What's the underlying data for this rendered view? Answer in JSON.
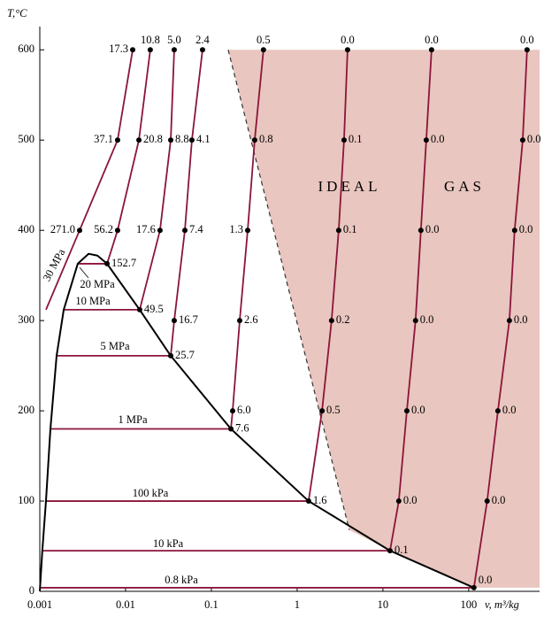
{
  "chart_data": {
    "type": "line",
    "xlog": true,
    "xlabel": "v, m³/kg",
    "ylabel": "T,°C",
    "xlim": [
      0.001,
      670
    ],
    "ylim": [
      0,
      615
    ],
    "xticks": [
      0.001,
      0.01,
      0.1,
      1,
      10,
      100
    ],
    "yticks": [
      0,
      100,
      200,
      300,
      400,
      500,
      600
    ],
    "annotations": [
      "IDEAL",
      "GAS"
    ],
    "region_color": "#e9c6bf",
    "ideal_gas_boundary": {
      "x": [
        0.157,
        4.06
      ],
      "values": [
        600,
        68
      ]
    },
    "saturation_curve": {
      "color": "#000000",
      "x": [
        0.001,
        0.00107,
        0.00118,
        0.00133,
        0.00157,
        0.0019,
        0.00277,
        0.0037,
        0.0047,
        0.00608,
        0.0146,
        0.0336,
        0.169,
        1.36,
        12.1,
        115
      ],
      "values": [
        0,
        45,
        100,
        180,
        261,
        312,
        363,
        374,
        372,
        363,
        312,
        261,
        180,
        100,
        45,
        4
      ]
    },
    "series": [
      {
        "name": "30 MPa",
        "color": "#8b1538",
        "x": [
          0.0121,
          0.00807,
          0.00291,
          0.00118
        ],
        "values": [
          600,
          500,
          400,
          312
        ],
        "point_labels": [
          "17.3",
          "37.1",
          "271.0",
          null
        ]
      },
      {
        "name": "20 MPa",
        "color": "#8b1538",
        "x": [
          0.0194,
          0.0143,
          0.00807,
          0.00608,
          0.00277
        ],
        "values": [
          600,
          500,
          400,
          363,
          363
        ],
        "point_labels": [
          "10.8",
          "20.8",
          "56.2",
          "152.7",
          null
        ]
      },
      {
        "name": "10 MPa",
        "color": "#8b1538",
        "x": [
          0.0369,
          0.0336,
          0.0252,
          0.0146,
          0.0019
        ],
        "values": [
          600,
          500,
          400,
          312,
          312
        ],
        "point_labels": [
          "5.0",
          "8.8",
          "17.6",
          "49.5",
          null
        ]
      },
      {
        "name": "5 MPa",
        "color": "#8b1538",
        "x": [
          0.0789,
          0.0593,
          0.0491,
          0.0369,
          0.0336,
          0.00157
        ],
        "values": [
          600,
          500,
          400,
          300,
          261,
          261
        ],
        "point_labels": [
          "2.4",
          "4.1",
          "7.4",
          "16.7",
          "25.7",
          null
        ]
      },
      {
        "name": "1 MPa",
        "color": "#8b1538",
        "x": [
          0.405,
          0.32,
          0.265,
          0.214,
          0.177,
          0.169,
          0.00133
        ],
        "values": [
          600,
          500,
          400,
          300,
          200,
          180,
          180
        ],
        "point_labels": [
          "0.5",
          "0.8",
          "1.3",
          "2.6",
          "6.0",
          "7.6",
          null
        ]
      },
      {
        "name": "100 kPa",
        "color": "#8b1538",
        "x": [
          3.87,
          3.52,
          3.05,
          2.52,
          1.95,
          1.36,
          0.00118
        ],
        "values": [
          600,
          500,
          400,
          300,
          200,
          100,
          100
        ],
        "point_labels": [
          "0.0",
          "0.1",
          "0.1",
          "0.2",
          "0.5",
          "1.6",
          null
        ]
      },
      {
        "name": "10 kPa",
        "color": "#8b1538",
        "x": [
          36.9,
          32.0,
          27.7,
          24.0,
          19.0,
          15.3,
          12.1,
          0.00107
        ],
        "values": [
          600,
          500,
          400,
          300,
          200,
          100,
          45,
          45
        ],
        "point_labels": [
          "0.0",
          "0.0",
          "0.0",
          "0.0",
          "0.0",
          "0.0",
          "0.1",
          null
        ]
      },
      {
        "name": "0.8 kPa",
        "color": "#8b1538",
        "x": [
          479,
          426,
          343,
          298,
          219,
          164,
          115,
          0.001
        ],
        "values": [
          600,
          500,
          400,
          300,
          200,
          100,
          4,
          4
        ],
        "point_labels": [
          "0.0",
          "0.0",
          "0.0",
          "0.0",
          "0.0",
          "0.0",
          "0.0",
          null
        ]
      }
    ]
  }
}
